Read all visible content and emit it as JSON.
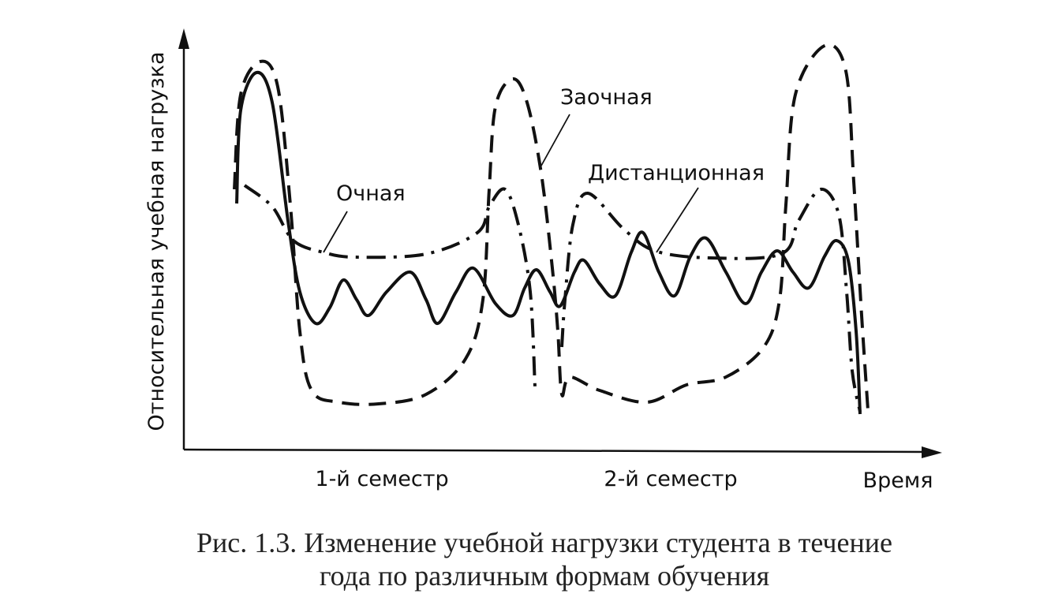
{
  "y_axis_label": "Относительная учебная нагрузка",
  "x_axis_label": "Время",
  "x_labels": [
    "1-й семестр",
    "2-й семестр"
  ],
  "curve_labels": [
    "Заочная",
    "Очная",
    "Дистанционная"
  ],
  "caption": [
    "Рис. 1.3. Изменение учебной нагрузки студента в течение",
    "года по различным формам обучения"
  ]
}
